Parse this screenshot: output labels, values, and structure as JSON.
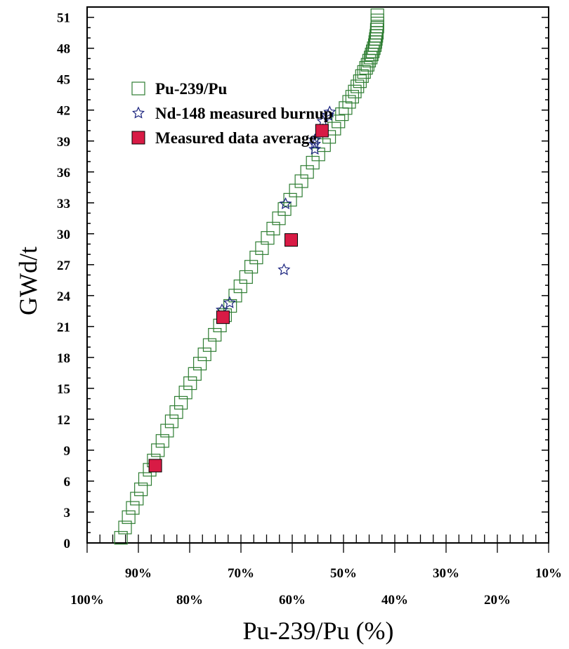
{
  "chart_data": {
    "type": "scatter",
    "title": "",
    "xlabel": "Pu-239/Pu (%)",
    "ylabel": "GWd/t",
    "xlim": [
      100,
      10
    ],
    "ylim": [
      0,
      52
    ],
    "x_ticks_upper": [
      "90%",
      "70%",
      "50%",
      "30%",
      "10%"
    ],
    "x_ticks_lower": [
      "100%",
      "80%",
      "60%",
      "40%",
      "20%"
    ],
    "y_ticks": [
      "0",
      "3",
      "6",
      "9",
      "12",
      "15",
      "18",
      "21",
      "24",
      "27",
      "30",
      "33",
      "36",
      "39",
      "42",
      "45",
      "48",
      "51"
    ],
    "grid": false,
    "legend_placement": "top-left",
    "series": [
      {
        "name": "Pu-239/Pu",
        "marker": "open-square",
        "color": "#2e7d32",
        "points": [
          [
            93.4,
            0.5
          ],
          [
            92.6,
            1.5
          ],
          [
            91.9,
            2.5
          ],
          [
            91.1,
            3.4
          ],
          [
            90.3,
            4.3
          ],
          [
            89.5,
            5.2
          ],
          [
            88.7,
            6.2
          ],
          [
            87.8,
            7.1
          ],
          [
            87.0,
            8.0
          ],
          [
            86.2,
            9.0
          ],
          [
            85.3,
            9.9
          ],
          [
            84.4,
            10.9
          ],
          [
            83.5,
            11.8
          ],
          [
            82.6,
            12.7
          ],
          [
            81.7,
            13.6
          ],
          [
            80.8,
            14.6
          ],
          [
            79.9,
            15.5
          ],
          [
            79.0,
            16.4
          ],
          [
            78.0,
            17.4
          ],
          [
            77.1,
            18.3
          ],
          [
            76.1,
            19.2
          ],
          [
            75.1,
            20.2
          ],
          [
            74.1,
            21.1
          ],
          [
            73.1,
            22.1
          ],
          [
            72.1,
            23.0
          ],
          [
            71.1,
            24.0
          ],
          [
            70.1,
            24.9
          ],
          [
            69.0,
            25.8
          ],
          [
            68.0,
            26.8
          ],
          [
            67.0,
            27.7
          ],
          [
            65.9,
            28.6
          ],
          [
            64.8,
            29.6
          ],
          [
            63.7,
            30.5
          ],
          [
            62.6,
            31.5
          ],
          [
            61.5,
            32.4
          ],
          [
            60.4,
            33.3
          ],
          [
            59.3,
            34.2
          ],
          [
            58.2,
            35.1
          ],
          [
            57.1,
            36.0
          ],
          [
            56.0,
            36.9
          ],
          [
            54.9,
            37.7
          ],
          [
            53.8,
            38.6
          ],
          [
            52.8,
            39.4
          ],
          [
            51.8,
            40.2
          ],
          [
            51.0,
            40.9
          ],
          [
            50.3,
            41.6
          ],
          [
            49.6,
            42.2
          ],
          [
            48.9,
            42.8
          ],
          [
            48.3,
            43.3
          ],
          [
            47.8,
            43.8
          ],
          [
            47.3,
            44.3
          ],
          [
            46.8,
            44.8
          ],
          [
            46.4,
            45.3
          ],
          [
            46.0,
            45.7
          ],
          [
            45.6,
            46.1
          ],
          [
            45.3,
            46.4
          ],
          [
            45.0,
            46.8
          ],
          [
            44.7,
            47.1
          ],
          [
            44.5,
            47.4
          ],
          [
            44.3,
            47.7
          ],
          [
            44.1,
            48.0
          ],
          [
            43.9,
            48.3
          ],
          [
            43.8,
            48.6
          ],
          [
            43.7,
            48.9
          ],
          [
            43.6,
            49.2
          ],
          [
            43.5,
            49.5
          ],
          [
            43.5,
            49.8
          ],
          [
            43.4,
            50.1
          ],
          [
            43.4,
            50.4
          ],
          [
            43.4,
            50.7
          ],
          [
            43.4,
            51.2
          ]
        ]
      },
      {
        "name": "Nd-148 measured burnup",
        "marker": "open-star",
        "color": "#1a237e",
        "points": [
          [
            73.7,
            22.6
          ],
          [
            72.2,
            23.3
          ],
          [
            61.6,
            26.5
          ],
          [
            61.3,
            32.9
          ],
          [
            55.6,
            38.2
          ],
          [
            55.6,
            38.7
          ],
          [
            55.6,
            39.1
          ],
          [
            54.0,
            40.9
          ],
          [
            53.0,
            41.5
          ],
          [
            52.7,
            41.8
          ]
        ]
      },
      {
        "name": "Measured data average",
        "marker": "filled-square",
        "color": "#d81b45",
        "points": [
          [
            86.7,
            7.5
          ],
          [
            73.5,
            21.9
          ],
          [
            60.2,
            29.4
          ],
          [
            54.2,
            40.0
          ]
        ]
      }
    ]
  }
}
